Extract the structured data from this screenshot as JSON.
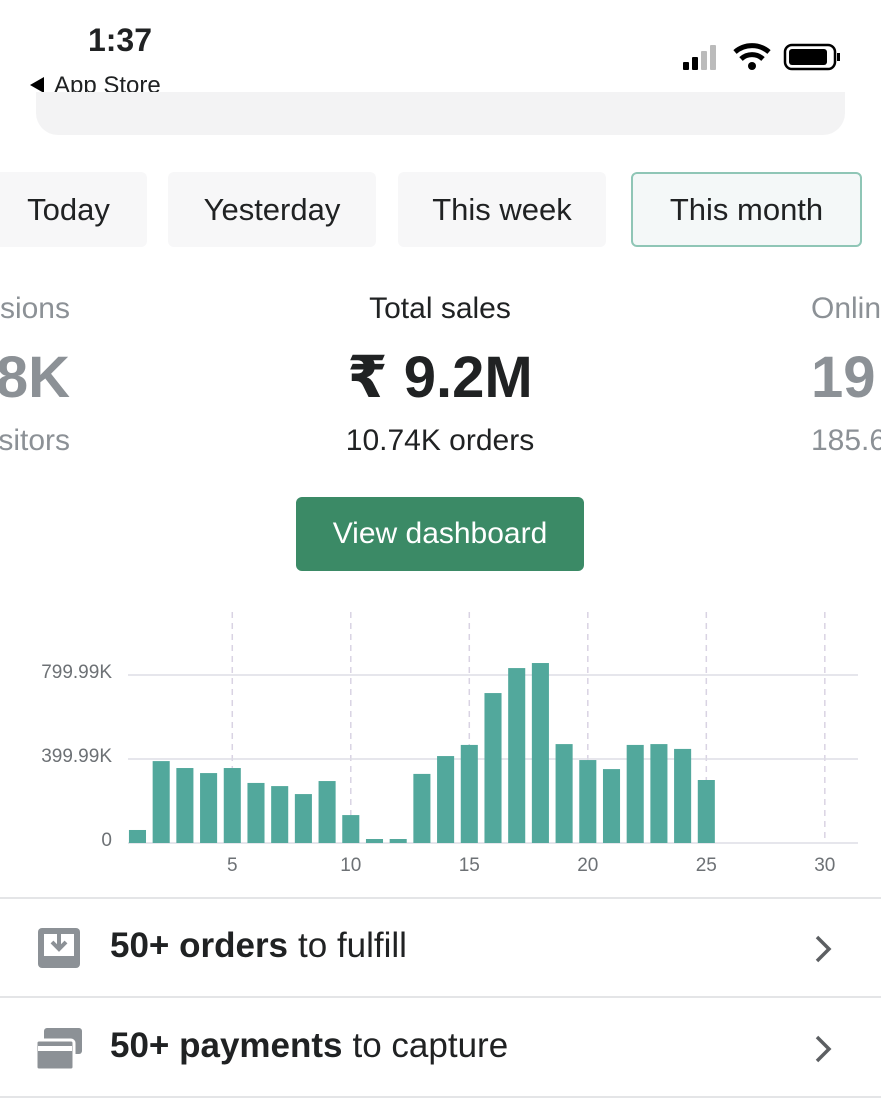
{
  "status_bar": {
    "time": "1:37",
    "back_label": "App Store"
  },
  "tabs": [
    "Today",
    "Yesterday",
    "This week",
    "This month"
  ],
  "selected_tab": 3,
  "stats": [
    {
      "label": "sions",
      "value": "8K",
      "sub": "sitors"
    },
    {
      "label": "Total sales",
      "value": "₹ 9.2M",
      "sub": "10.74K orders"
    },
    {
      "label": "Onlin",
      "value": "19",
      "sub": "185.6"
    }
  ],
  "button": "View dashboard",
  "chart_data": {
    "type": "bar",
    "x": [
      1,
      2,
      3,
      4,
      5,
      6,
      7,
      8,
      9,
      10,
      11,
      12,
      13,
      14,
      15,
      16,
      17,
      18,
      19,
      20,
      21,
      22,
      23,
      24,
      25,
      26,
      27,
      28,
      29,
      30,
      31
    ],
    "values": [
      62000,
      390000,
      357000,
      333000,
      357000,
      286000,
      271000,
      233000,
      295000,
      133000,
      19000,
      19000,
      329000,
      414000,
      467000,
      714000,
      833000,
      857000,
      471000,
      395000,
      352000,
      467000,
      471000,
      448000,
      300000,
      0,
      0,
      0,
      0,
      0,
      0
    ],
    "color": "#52a89c",
    "xlim": [
      0.6,
      31.4
    ],
    "xticks": [
      5,
      10,
      15,
      20,
      25,
      30
    ],
    "ylim": [
      0,
      1100000
    ],
    "yticks": [
      0,
      {
        "value": 399990,
        "label": "399.99K"
      },
      {
        "value": 799990,
        "label": "799.99K"
      }
    ],
    "grid": true
  },
  "tasks": [
    {
      "bold": "50+ orders",
      "text": "to fulfill"
    },
    {
      "bold": "50+ payments",
      "text": "to capture"
    }
  ]
}
